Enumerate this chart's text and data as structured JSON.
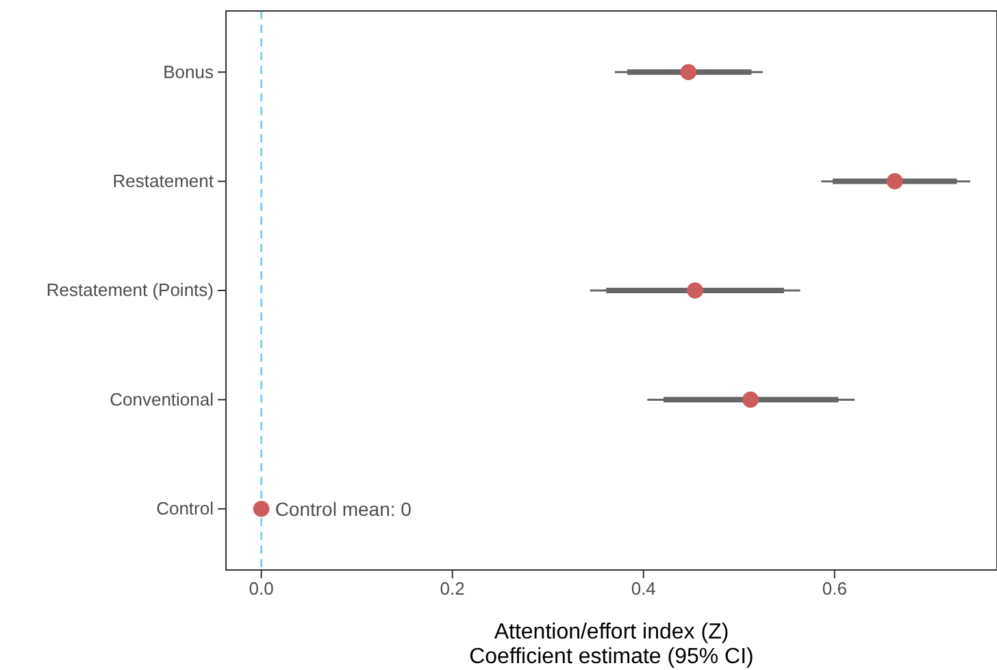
{
  "chart_data": {
    "type": "scatter",
    "orientation": "horizontal",
    "xlabel": "Attention/effort index (Z)\nCoefficient estimate (95% CI)",
    "categories": [
      "Bonus",
      "Restatement",
      "Restatement (Points)",
      "Conventional",
      "Control"
    ],
    "series": [
      {
        "type": "bar",
        "color": "#666666",
        "base": [
          0.383,
          0.598,
          0.361,
          0.421,
          null
        ],
        "values": [
          0.13,
          0.13,
          0.186,
          0.183,
          null
        ]
      },
      {
        "marker": "circle",
        "color": "#cd5c5c",
        "values": [
          0.447,
          0.663,
          0.454,
          0.512,
          0
        ],
        "errors": [
          [
            0.37,
            0.525
          ],
          [
            0.586,
            0.742
          ],
          [
            0.344,
            0.564
          ],
          [
            0.404,
            0.621
          ],
          null
        ]
      }
    ],
    "xlim": [
      -0.037,
      0.77
    ],
    "xticks": [
      {
        "value": 0,
        "label": "0.0"
      },
      {
        "value": 0.2,
        "label": "0.2"
      },
      {
        "value": 0.4,
        "label": "0.4"
      },
      {
        "value": 0.6,
        "label": "0.6"
      }
    ],
    "ref_lines": [
      {
        "axis": "x",
        "value": 0,
        "color": "#87ceeb",
        "line_style": "dashed"
      }
    ],
    "annotations": [
      {
        "text": "Control mean: 0",
        "x": 0,
        "y": "Control"
      }
    ],
    "grid": false
  }
}
